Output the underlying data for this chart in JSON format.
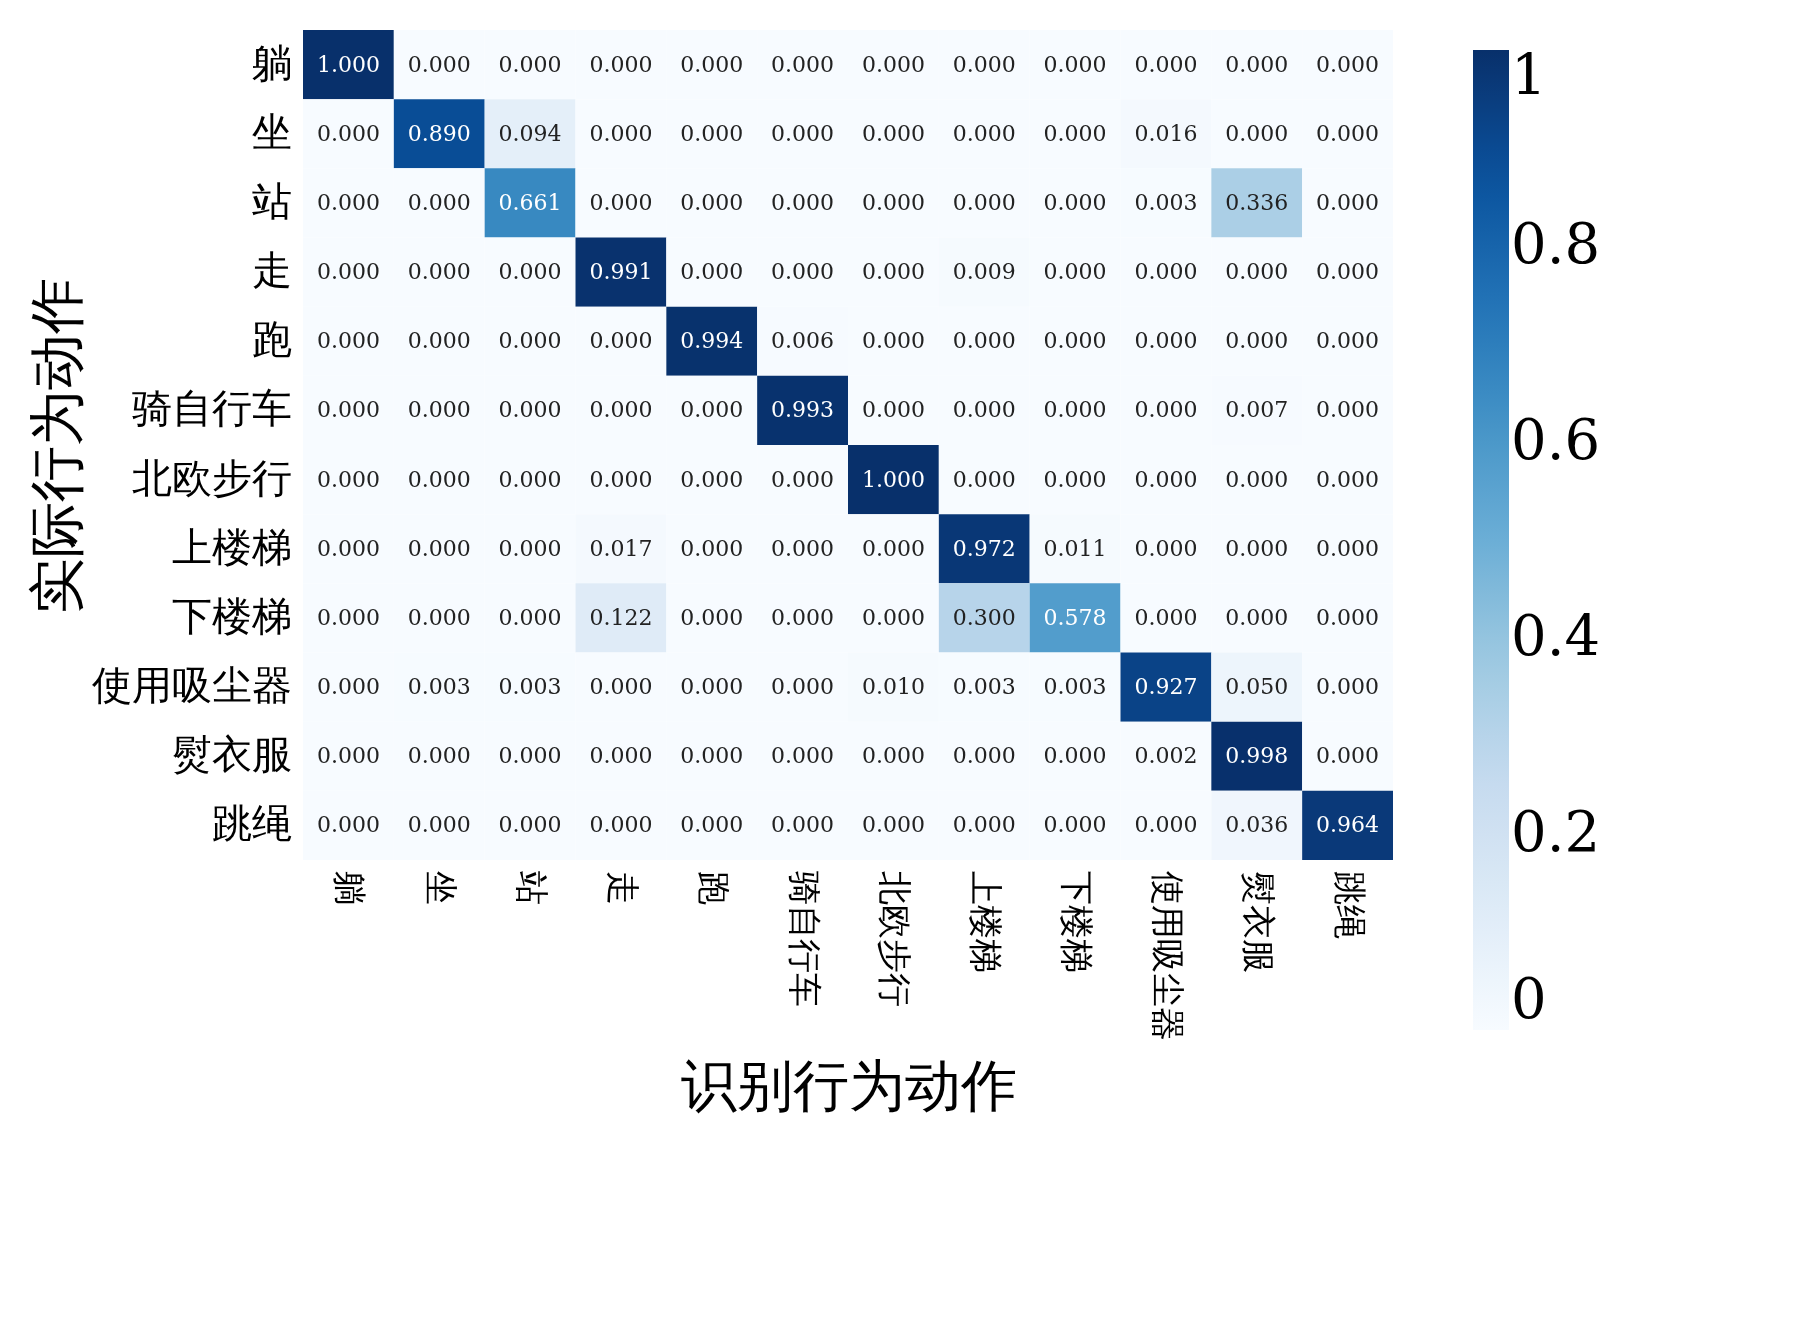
{
  "chart_data": {
    "type": "heatmap",
    "xlabel": "识别行为动作",
    "ylabel": "实际行为动作",
    "categories": [
      "躺",
      "坐",
      "站",
      "走",
      "跑",
      "骑自行车",
      "北欧步行",
      "上楼梯",
      "下楼梯",
      "使用吸尘器",
      "熨衣服",
      "跳绳"
    ],
    "y_categories": [
      "躺",
      "坐",
      "站",
      "走",
      "跑",
      "骑自行车",
      "北欧步行",
      "上楼梯",
      "下楼梯",
      "使用吸尘器",
      "熨衣服",
      "跳绳"
    ],
    "cells": [
      [
        1.0,
        0,
        0,
        0,
        0,
        0,
        0,
        0,
        0,
        0,
        0,
        0
      ],
      [
        0,
        0.89,
        0.094,
        0,
        0,
        0,
        0,
        0,
        0,
        0.016,
        0,
        0
      ],
      [
        0,
        0,
        0.661,
        0,
        0,
        0,
        0,
        0,
        0,
        0.003,
        0.336,
        0
      ],
      [
        0,
        0,
        0,
        0.991,
        0,
        0,
        0,
        0.009,
        0,
        0,
        0,
        0
      ],
      [
        0,
        0,
        0,
        0,
        0.994,
        0.006,
        0,
        0,
        0,
        0,
        0,
        0
      ],
      [
        0,
        0,
        0,
        0,
        0,
        0.993,
        0,
        0,
        0,
        0,
        0.007,
        0
      ],
      [
        0,
        0,
        0,
        0,
        0,
        0,
        1.0,
        0,
        0,
        0,
        0,
        0
      ],
      [
        0,
        0,
        0,
        0.017,
        0,
        0,
        0,
        0.972,
        0.011,
        0,
        0,
        0
      ],
      [
        0,
        0,
        0,
        0.122,
        0,
        0,
        0,
        0.3,
        0.578,
        0,
        0,
        0
      ],
      [
        0,
        0.003,
        0.003,
        0,
        0,
        0,
        0.01,
        0.003,
        0.003,
        0.927,
        0.05,
        0
      ],
      [
        0,
        0,
        0,
        0,
        0,
        0,
        0,
        0,
        0,
        0.002,
        0.998,
        0
      ],
      [
        0,
        0,
        0,
        0,
        0,
        0,
        0,
        0,
        0,
        0,
        0.036,
        0.964
      ]
    ],
    "cell_labels": [
      [
        "1.000",
        "0.000",
        "0.000",
        "0.000",
        "0.000",
        "0.000",
        "0.000",
        "0.000",
        "0.000",
        "0.000",
        "0.000",
        "0.000"
      ],
      [
        "0.000",
        "0.890",
        "0.094",
        "0.000",
        "0.000",
        "0.000",
        "0.000",
        "0.000",
        "0.000",
        "0.016",
        "0.000",
        "0.000"
      ],
      [
        "0.000",
        "0.000",
        "0.661",
        "0.000",
        "0.000",
        "0.000",
        "0.000",
        "0.000",
        "0.000",
        "0.003",
        "0.336",
        "0.000"
      ],
      [
        "0.000",
        "0.000",
        "0.000",
        "0.991",
        "0.000",
        "0.000",
        "0.000",
        "0.009",
        "0.000",
        "0.000",
        "0.000",
        "0.000"
      ],
      [
        "0.000",
        "0.000",
        "0.000",
        "0.000",
        "0.994",
        "0.006",
        "0.000",
        "0.000",
        "0.000",
        "0.000",
        "0.000",
        "0.000"
      ],
      [
        "0.000",
        "0.000",
        "0.000",
        "0.000",
        "0.000",
        "0.993",
        "0.000",
        "0.000",
        "0.000",
        "0.000",
        "0.007",
        "0.000"
      ],
      [
        "0.000",
        "0.000",
        "0.000",
        "0.000",
        "0.000",
        "0.000",
        "1.000",
        "0.000",
        "0.000",
        "0.000",
        "0.000",
        "0.000"
      ],
      [
        "0.000",
        "0.000",
        "0.000",
        "0.017",
        "0.000",
        "0.000",
        "0.000",
        "0.972",
        "0.011",
        "0.000",
        "0.000",
        "0.000"
      ],
      [
        "0.000",
        "0.000",
        "0.000",
        "0.122",
        "0.000",
        "0.000",
        "0.000",
        "0.300",
        "0.578",
        "0.000",
        "0.000",
        "0.000"
      ],
      [
        "0.000",
        "0.003",
        "0.003",
        "0.000",
        "0.000",
        "0.000",
        "0.010",
        "0.003",
        "0.003",
        "0.927",
        "0.050",
        "0.000"
      ],
      [
        "0.000",
        "0.000",
        "0.000",
        "0.000",
        "0.000",
        "0.000",
        "0.000",
        "0.000",
        "0.000",
        "0.002",
        "0.998",
        "0.000"
      ],
      [
        "0.000",
        "0.000",
        "0.000",
        "0.000",
        "0.000",
        "0.000",
        "0.000",
        "0.000",
        "0.000",
        "0.000",
        "0.036",
        "0.964"
      ]
    ],
    "clim": [
      0,
      1
    ],
    "cticks": [
      0,
      0.2,
      0.4,
      0.6,
      0.8,
      1
    ]
  }
}
